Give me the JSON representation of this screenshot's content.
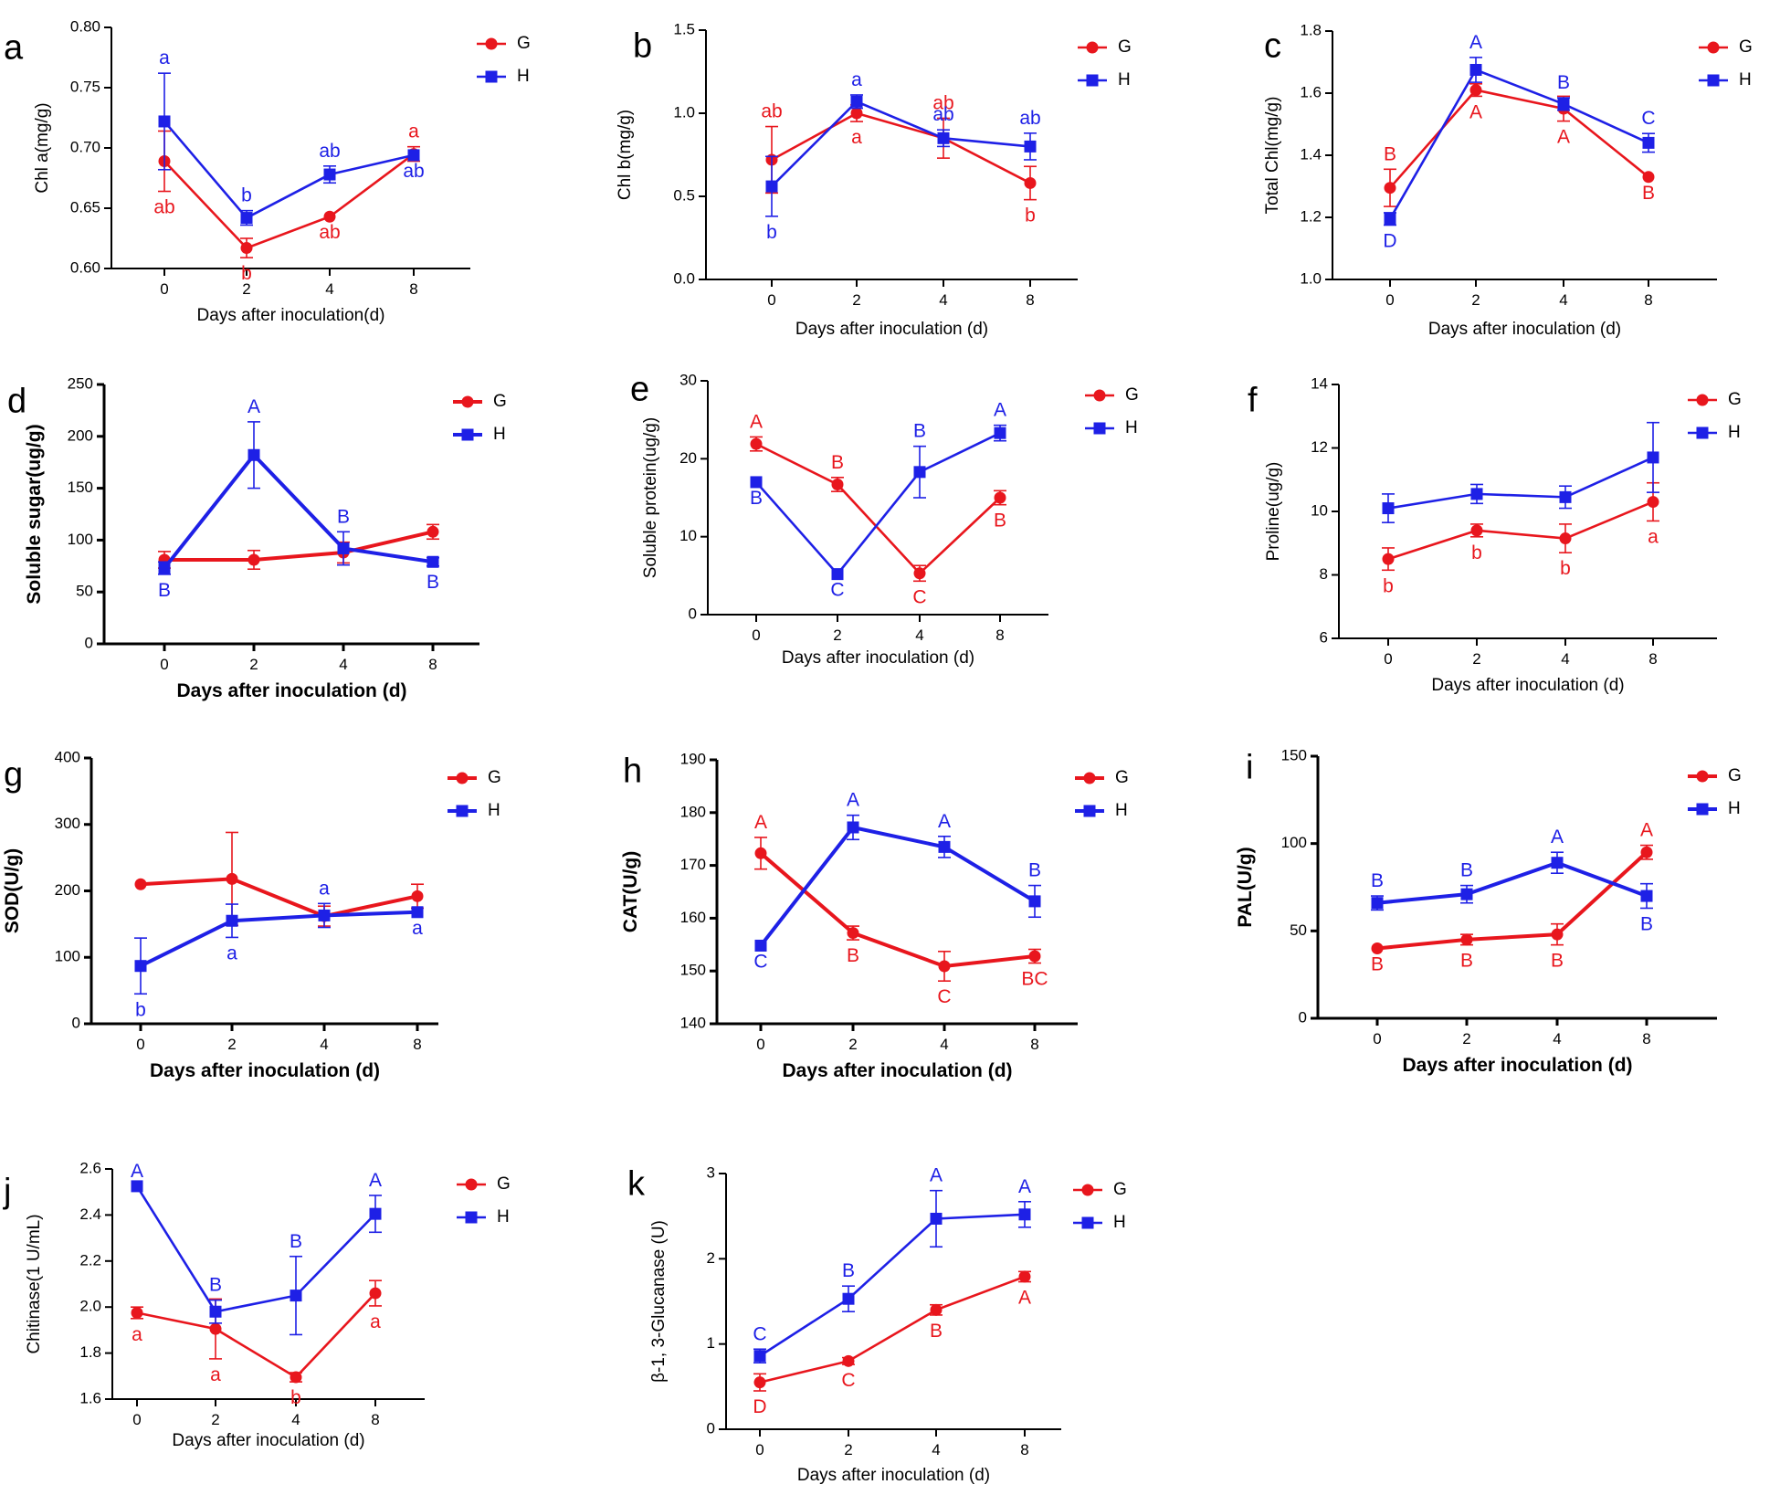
{
  "figure": {
    "colors": {
      "G": "#e8161d",
      "H": "#1e20e6",
      "axis": "#000000"
    }
  },
  "chart_data": [
    {
      "id": "a",
      "type": "line",
      "letter": "a",
      "xlabel": "Days after inoculation(d)",
      "ylabel": "Chl a(mg/g)",
      "categories": [
        "0",
        "2",
        "4",
        "8"
      ],
      "ylim": [
        0.6,
        0.8
      ],
      "yticks": [
        "0.60",
        "0.65",
        "0.70",
        "0.75",
        "0.80"
      ],
      "series": [
        {
          "name": "G",
          "values": [
            0.689,
            0.617,
            0.643,
            0.695
          ],
          "errors": [
            0.025,
            0.008,
            0.0,
            0.006
          ],
          "labels": [
            "ab",
            "b",
            "ab",
            "a"
          ]
        },
        {
          "name": "H",
          "values": [
            0.722,
            0.642,
            0.678,
            0.694
          ],
          "errors": [
            0.04,
            0.006,
            0.007,
            0.0
          ],
          "labels": [
            "a",
            "b",
            "ab",
            "ab"
          ]
        }
      ]
    },
    {
      "id": "b",
      "type": "line",
      "letter": "b",
      "xlabel": "Days after inoculation (d)",
      "ylabel": "Chl b(mg/g)",
      "categories": [
        "0",
        "2",
        "4",
        "8"
      ],
      "ylim": [
        0.0,
        1.5
      ],
      "yticks": [
        "0.0",
        "0.5",
        "1.0",
        "1.5"
      ],
      "series": [
        {
          "name": "G",
          "values": [
            0.72,
            1.0,
            0.85,
            0.58
          ],
          "errors": [
            0.2,
            0.05,
            0.12,
            0.1
          ],
          "labels": [
            "ab",
            "a",
            "ab",
            "b"
          ]
        },
        {
          "name": "H",
          "values": [
            0.56,
            1.07,
            0.85,
            0.8
          ],
          "errors": [
            0.18,
            0.04,
            0.05,
            0.08
          ],
          "labels": [
            "b",
            "a",
            "ab",
            "ab"
          ]
        }
      ]
    },
    {
      "id": "c",
      "type": "line",
      "letter": "c",
      "xlabel": "Days after inoculation (d)",
      "ylabel": "Total Chl(mg/g)",
      "categories": [
        "0",
        "2",
        "4",
        "8"
      ],
      "ylim": [
        1.0,
        1.8
      ],
      "yticks": [
        "1.0",
        "1.2",
        "1.4",
        "1.6",
        "1.8"
      ],
      "series": [
        {
          "name": "G",
          "values": [
            1.295,
            1.61,
            1.55,
            1.33
          ],
          "errors": [
            0.06,
            0.02,
            0.04,
            0.0
          ],
          "labels": [
            "B",
            "A",
            "A",
            "B"
          ]
        },
        {
          "name": "H",
          "values": [
            1.195,
            1.675,
            1.565,
            1.44
          ],
          "errors": [
            0.02,
            0.04,
            0.02,
            0.03
          ],
          "labels": [
            "D",
            "A",
            "B",
            "C"
          ]
        }
      ]
    },
    {
      "id": "d",
      "type": "line",
      "letter": "d",
      "xlabel": "Days after inoculation (d)",
      "ylabel": "Soluble sugar(ug/g)",
      "categories": [
        "0",
        "2",
        "4",
        "8"
      ],
      "ylim": [
        0,
        250
      ],
      "yticks": [
        "0",
        "50",
        "100",
        "150",
        "200",
        "250"
      ],
      "series": [
        {
          "name": "G",
          "values": [
            81,
            81,
            88,
            108
          ],
          "errors": [
            8,
            9,
            10,
            7
          ],
          "labels": []
        },
        {
          "name": "H",
          "values": [
            73,
            182,
            92,
            79
          ],
          "errors": [
            6,
            32,
            16,
            4
          ],
          "labels": [
            "B",
            "A",
            "B",
            "B"
          ]
        }
      ]
    },
    {
      "id": "e",
      "type": "line",
      "letter": "e",
      "xlabel": "Days  after inoculation (d)",
      "ylabel": "Soluble protein(ug/g)",
      "categories": [
        "0",
        "2",
        "4",
        "8"
      ],
      "ylim": [
        0,
        30
      ],
      "yticks": [
        "0",
        "10",
        "20",
        "30"
      ],
      "series": [
        {
          "name": "G",
          "values": [
            21.9,
            16.7,
            5.3,
            15.0
          ],
          "errors": [
            0.9,
            0.9,
            1.0,
            0.9
          ],
          "labels": [
            "A",
            "B",
            "C",
            "B"
          ]
        },
        {
          "name": "H",
          "values": [
            17.0,
            5.2,
            18.3,
            23.3
          ],
          "errors": [
            0.0,
            0.0,
            3.3,
            1.0
          ],
          "labels": [
            "B",
            "C",
            "B",
            "A"
          ]
        }
      ]
    },
    {
      "id": "f",
      "type": "line",
      "letter": "f",
      "xlabel": "Days after inoculation (d)",
      "ylabel": "Proline(ug/g)",
      "categories": [
        "0",
        "2",
        "4",
        "8"
      ],
      "ylim": [
        6,
        14
      ],
      "yticks": [
        "6",
        "8",
        "10",
        "12",
        "14"
      ],
      "series": [
        {
          "name": "G",
          "values": [
            8.5,
            9.4,
            9.15,
            10.3
          ],
          "errors": [
            0.35,
            0.2,
            0.45,
            0.6
          ],
          "labels": [
            "b",
            "b",
            "b",
            "a"
          ]
        },
        {
          "name": "H",
          "values": [
            10.1,
            10.55,
            10.45,
            11.7
          ],
          "errors": [
            0.45,
            0.3,
            0.35,
            1.1
          ],
          "labels": []
        }
      ]
    },
    {
      "id": "g",
      "type": "line",
      "letter": "g",
      "xlabel": "Days after inoculation (d)",
      "ylabel": "SOD(U/g)",
      "categories": [
        "0",
        "2",
        "4",
        "8"
      ],
      "ylim": [
        0,
        400
      ],
      "yticks": [
        "0",
        "100",
        "200",
        "300",
        "400"
      ],
      "series": [
        {
          "name": "G",
          "values": [
            210,
            218,
            162,
            192
          ],
          "errors": [
            0,
            70,
            15,
            18
          ],
          "labels": []
        },
        {
          "name": "H",
          "values": [
            87,
            155,
            163,
            168
          ],
          "errors": [
            42,
            25,
            18,
            0
          ],
          "labels": [
            "b",
            "a",
            "a",
            "a"
          ]
        }
      ]
    },
    {
      "id": "h",
      "type": "line",
      "letter": "h",
      "xlabel": "Days after inoculation (d)",
      "ylabel": "CAT(U/g)",
      "categories": [
        "0",
        "2",
        "4",
        "8"
      ],
      "ylim": [
        140,
        190
      ],
      "yticks": [
        "140",
        "150",
        "160",
        "170",
        "180",
        "190"
      ],
      "series": [
        {
          "name": "G",
          "values": [
            172.3,
            157.2,
            150.9,
            152.8
          ],
          "errors": [
            3.0,
            1.3,
            2.8,
            1.3
          ],
          "labels": [
            "A",
            "B",
            "C",
            "BC"
          ]
        },
        {
          "name": "H",
          "values": [
            154.8,
            177.2,
            173.5,
            163.2
          ],
          "errors": [
            0.0,
            2.3,
            2.0,
            3.0
          ],
          "labels": [
            "C",
            "A",
            "A",
            "B"
          ]
        }
      ]
    },
    {
      "id": "i",
      "type": "line",
      "letter": "i",
      "xlabel": "Days after inoculation (d)",
      "ylabel": "PAL(U/g)",
      "categories": [
        "0",
        "2",
        "4",
        "8"
      ],
      "ylim": [
        0,
        150
      ],
      "yticks": [
        "0",
        "50",
        "100",
        "150"
      ],
      "series": [
        {
          "name": "G",
          "values": [
            40,
            45,
            48,
            95
          ],
          "errors": [
            0,
            3,
            6,
            4
          ],
          "labels": [
            "B",
            "B",
            "B",
            "A"
          ]
        },
        {
          "name": "H",
          "values": [
            66,
            71,
            89,
            70
          ],
          "errors": [
            4,
            5,
            6,
            7
          ],
          "labels": [
            "B",
            "B",
            "A",
            "B"
          ]
        }
      ]
    },
    {
      "id": "j",
      "type": "line",
      "letter": "j",
      "xlabel": "Days after inoculation (d)",
      "ylabel": "Chitinase(1 U/mL)",
      "categories": [
        "0",
        "2",
        "4",
        "8"
      ],
      "ylim": [
        1.6,
        2.6
      ],
      "yticks": [
        "1.6",
        "1.8",
        "2.0",
        "2.2",
        "2.4",
        "2.6"
      ],
      "series": [
        {
          "name": "G",
          "values": [
            1.975,
            1.905,
            1.695,
            2.06
          ],
          "errors": [
            0.025,
            0.13,
            0.02,
            0.055
          ],
          "labels": [
            "a",
            "a",
            "b",
            "a"
          ]
        },
        {
          "name": "H",
          "values": [
            2.525,
            1.98,
            2.05,
            2.405
          ],
          "errors": [
            0.0,
            0.05,
            0.17,
            0.08
          ],
          "labels": [
            "A",
            "B",
            "B",
            "A"
          ]
        }
      ]
    },
    {
      "id": "k",
      "type": "line",
      "letter": "k",
      "xlabel": "Days after inoculation (d)",
      "ylabel": "β-1, 3-Glucanase (U)",
      "categories": [
        "0",
        "2",
        "4",
        "8"
      ],
      "ylim": [
        0,
        3
      ],
      "yticks": [
        "0",
        "1",
        "2",
        "3"
      ],
      "series": [
        {
          "name": "G",
          "values": [
            0.55,
            0.8,
            1.4,
            1.79
          ],
          "errors": [
            0.1,
            0.04,
            0.06,
            0.06
          ],
          "labels": [
            "D",
            "C",
            "B",
            "A"
          ]
        },
        {
          "name": "H",
          "values": [
            0.86,
            1.53,
            2.47,
            2.52
          ],
          "errors": [
            0.08,
            0.15,
            0.33,
            0.15
          ],
          "labels": [
            "C",
            "B",
            "A",
            "A"
          ]
        }
      ]
    }
  ]
}
